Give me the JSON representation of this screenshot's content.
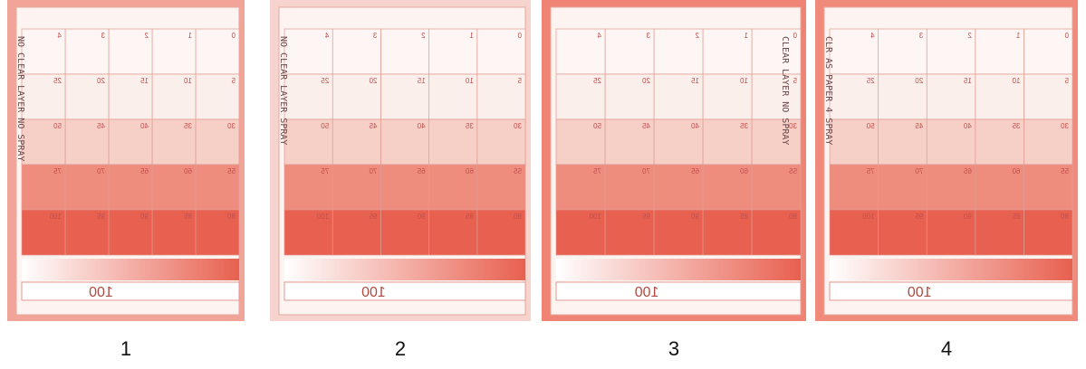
{
  "grid_labels": [
    [
      "0",
      "1",
      "2",
      "3",
      "4"
    ],
    [
      "5",
      "10",
      "15",
      "20",
      "25"
    ],
    [
      "30",
      "35",
      "40",
      "45",
      "50"
    ],
    [
      "55",
      "60",
      "65",
      "70",
      "75"
    ],
    [
      "80",
      "85",
      "90",
      "95",
      "100"
    ]
  ],
  "strip_label": "100",
  "panels": [
    {
      "label": "1",
      "note": "NO CLEAR LAYER NO SPRAY"
    },
    {
      "label": "2",
      "note": "NO CLEAR LAYER SPRAY"
    },
    {
      "label": "3",
      "note": "CLEAR LAYER NO SPRAY"
    },
    {
      "label": "4",
      "note": "CLR AS PAPER 4 SPRAY"
    }
  ]
}
